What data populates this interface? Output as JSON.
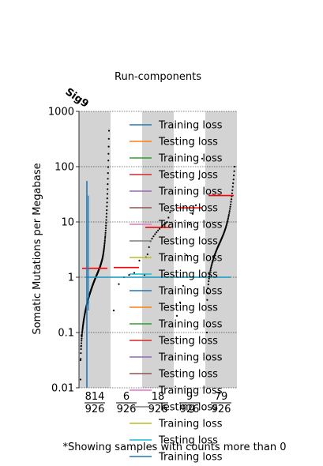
{
  "chart_data": {
    "type": "scatter",
    "title": "Run-components",
    "corner_label": "Sig9",
    "ylabel": "Somatic Mutations per Megabase",
    "yscale": "log",
    "ylim": [
      0.01,
      1000
    ],
    "yticks": [
      "0.01",
      "0.1",
      "1",
      "10",
      "100",
      "1000"
    ],
    "grid": "horizontal dotted at decades",
    "footnote": "*Showing samples with counts more than 0",
    "groups": [
      {
        "count": "814",
        "total": "926",
        "shaded": true,
        "median": 1.45
      },
      {
        "count": "6",
        "total": "926",
        "shaded": false,
        "median": 1.5
      },
      {
        "count": "18",
        "total": "926",
        "shaded": true,
        "median": 8.0
      },
      {
        "count": "9",
        "total": "926",
        "shaded": false,
        "median": 18.0
      },
      {
        "count": "79",
        "total": "926",
        "shaded": true,
        "median": 30.0
      }
    ],
    "reference_line": 1.0,
    "legend": {
      "placement": "overlapping plot, right",
      "entries": [
        {
          "label": "Training loss",
          "color": "#1f77b4"
        },
        {
          "label": "Testing loss",
          "color": "#ff7f0e"
        },
        {
          "label": "Training loss",
          "color": "#2ca02c"
        },
        {
          "label": "Testing loss",
          "color": "#d62728"
        },
        {
          "label": "Training loss",
          "color": "#9467bd"
        },
        {
          "label": "Testing loss",
          "color": "#8c564b"
        },
        {
          "label": "Training loss",
          "color": "#e377c2"
        },
        {
          "label": "Testing loss",
          "color": "#7f7f7f"
        },
        {
          "label": "Training loss",
          "color": "#bcbd22"
        },
        {
          "label": "Testing loss",
          "color": "#17becf"
        },
        {
          "label": "Training loss",
          "color": "#1f77b4"
        },
        {
          "label": "Testing loss",
          "color": "#ff7f0e"
        },
        {
          "label": "Training loss",
          "color": "#2ca02c"
        },
        {
          "label": "Testing loss",
          "color": "#d62728"
        },
        {
          "label": "Training loss",
          "color": "#9467bd"
        },
        {
          "label": "Testing loss",
          "color": "#8c564b"
        },
        {
          "label": "Training loss",
          "color": "#e377c2"
        },
        {
          "label": "Testing loss",
          "color": "#7f7f7f"
        },
        {
          "label": "Training loss",
          "color": "#bcbd22"
        },
        {
          "label": "Testing loss",
          "color": "#17becf"
        },
        {
          "label": "Training loss",
          "color": "#1f77b4"
        }
      ]
    },
    "colors": {
      "shade": "#d3d3d3",
      "median": "#ff0000",
      "points": "#000000",
      "reference": "#1f77b4"
    }
  }
}
